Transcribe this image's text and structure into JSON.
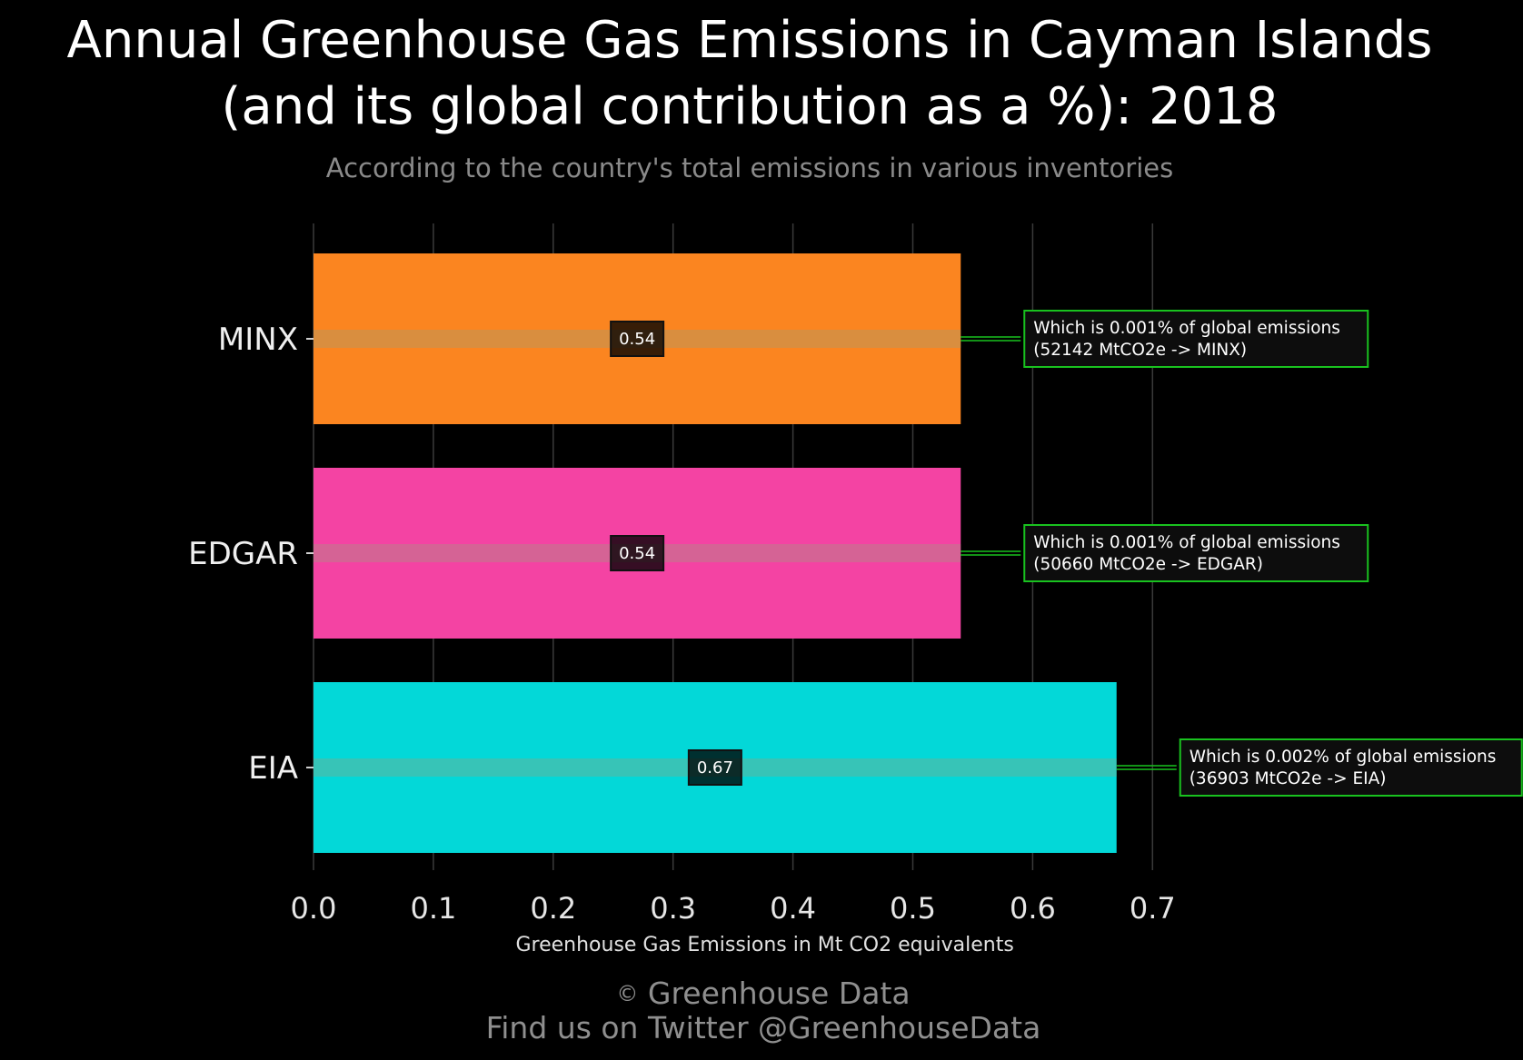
{
  "title_line1": "Annual Greenhouse Gas Emissions in Cayman Islands",
  "title_line2": "(and its global contribution as a %): 2018",
  "subtitle": "According to the country's total emissions in various inventories",
  "footer": {
    "copyright_symbol": "©",
    "credit": "Greenhouse Data",
    "twitter": "Find us on Twitter @GreenhouseData"
  },
  "colors": {
    "background": "#000000",
    "grid": "#3a3a3a",
    "annotation_border": "#19c21f"
  },
  "chart_data": {
    "type": "bar",
    "orientation": "horizontal",
    "title": "Annual Greenhouse Gas Emissions in Cayman Islands (and its global contribution as a %): 2018",
    "subtitle": "According to the country's total emissions in various inventories",
    "xlabel": "Greenhouse Gas Emissions in Mt CO2 equivalents",
    "ylabel": "",
    "xlim": [
      0,
      0.7
    ],
    "xticks": [
      "0.0",
      "0.1",
      "0.2",
      "0.3",
      "0.4",
      "0.5",
      "0.6",
      "0.7"
    ],
    "grid": "vertical",
    "categories": [
      "MINX",
      "EDGAR",
      "EIA"
    ],
    "values": [
      0.54,
      0.54,
      0.67
    ],
    "value_labels": [
      "0.54",
      "0.54",
      "0.67"
    ],
    "bar_colors": [
      "#fb8520",
      "#f443a3",
      "#03d8d8"
    ],
    "annotations": [
      [
        "Which is 0.001% of global emissions",
        "(52142 MtCO2e -> MINX)"
      ],
      [
        "Which is 0.001% of global emissions",
        "(50660 MtCO2e -> EDGAR)"
      ],
      [
        "Which is 0.002% of global emissions",
        "(36903 MtCO2e -> EIA)"
      ]
    ]
  }
}
